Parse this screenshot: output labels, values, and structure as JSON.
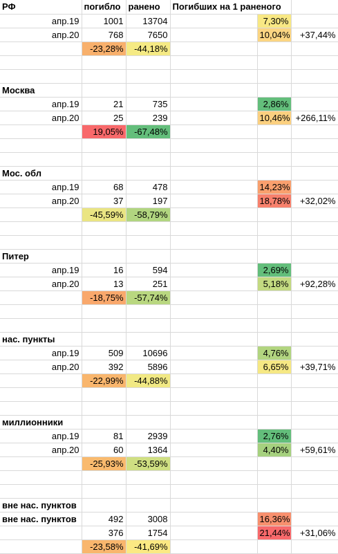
{
  "header": {
    "region": "РФ",
    "col_killed": "погибло",
    "col_injured": "ранено",
    "col_ratio": "Погибших на 1 раненого"
  },
  "sections": [
    {
      "title": "РФ",
      "rows": [
        {
          "period": "апр.19",
          "killed": "1001",
          "injured": "13704",
          "ratio": "7,30%",
          "ratio_color": "#f8e884",
          "change": ""
        },
        {
          "period": "апр.20",
          "killed": "768",
          "injured": "7650",
          "ratio": "10,04%",
          "ratio_color": "#fbd582",
          "change": "+37,44%"
        }
      ],
      "delta_killed": "-23,28%",
      "delta_killed_color": "#f8b06c",
      "delta_injured": "-44,18%",
      "delta_injured_color": "#f5ea84"
    },
    {
      "title": "Москва",
      "rows": [
        {
          "period": "апр.19",
          "killed": "21",
          "injured": "735",
          "ratio": "2,86%",
          "ratio_color": "#63be7b",
          "change": ""
        },
        {
          "period": "апр.20",
          "killed": "25",
          "injured": "239",
          "ratio": "10,46%",
          "ratio_color": "#fbd080",
          "change": "+266,11%"
        }
      ],
      "delta_killed": "19,05%",
      "delta_killed_color": "#f8696b",
      "delta_injured": "-67,48%",
      "delta_injured_color": "#63be7b"
    },
    {
      "title": "Мос. обл",
      "rows": [
        {
          "period": "апр.19",
          "killed": "68",
          "injured": "478",
          "ratio": "14,23%",
          "ratio_color": "#f9a06e",
          "change": ""
        },
        {
          "period": "апр.20",
          "killed": "37",
          "injured": "197",
          "ratio": "18,78%",
          "ratio_color": "#f8816d",
          "change": "+32,02%"
        }
      ],
      "delta_killed": "-45,59%",
      "delta_killed_color": "#eae583",
      "delta_injured": "-58,79%",
      "delta_injured_color": "#b1d580"
    },
    {
      "title": "Питер",
      "rows": [
        {
          "period": "апр.19",
          "killed": "16",
          "injured": "594",
          "ratio": "2,69%",
          "ratio_color": "#63be7b",
          "change": ""
        },
        {
          "period": "апр.20",
          "killed": "13",
          "injured": "251",
          "ratio": "5,18%",
          "ratio_color": "#c3da81",
          "change": "+92,28%"
        }
      ],
      "delta_killed": "-18,75%",
      "delta_killed_color": "#f9a86c",
      "delta_injured": "-57,74%",
      "delta_injured_color": "#b9d780"
    },
    {
      "title": "нас. пункты",
      "rows": [
        {
          "period": "апр.19",
          "killed": "509",
          "injured": "10696",
          "ratio": "4,76%",
          "ratio_color": "#b2d580",
          "change": ""
        },
        {
          "period": "апр.20",
          "killed": "392",
          "injured": "5896",
          "ratio": "6,65%",
          "ratio_color": "#f6e884",
          "change": "+39,71%"
        }
      ],
      "delta_killed": "-22,99%",
      "delta_killed_color": "#f9b66d",
      "delta_injured": "-44,88%",
      "delta_injured_color": "#f1e984"
    },
    {
      "title": "миллионники",
      "rows": [
        {
          "period": "апр.19",
          "killed": "81",
          "injured": "2939",
          "ratio": "2,76%",
          "ratio_color": "#63be7b",
          "change": ""
        },
        {
          "period": "апр.20",
          "killed": "60",
          "injured": "1364",
          "ratio": "4,40%",
          "ratio_color": "#a6d17f",
          "change": "+59,61%"
        }
      ],
      "delta_killed": "-25,93%",
      "delta_killed_color": "#f9ba6e",
      "delta_injured": "-53,59%",
      "delta_injured_color": "#cfdf82"
    },
    {
      "title": "вне нас. пунктов",
      "rows": [
        {
          "period": "",
          "killed": "492",
          "injured": "3008",
          "ratio": "16,36%",
          "ratio_color": "#f8906e",
          "change": ""
        },
        {
          "period": "",
          "killed": "376",
          "injured": "1754",
          "ratio": "21,44%",
          "ratio_color": "#f8696b",
          "change": "+31,06%"
        }
      ],
      "delta_killed": "-23,58%",
      "delta_killed_color": "#f9b66d",
      "delta_injured": "-41,69%",
      "delta_injured_color": "#fbe983"
    }
  ]
}
